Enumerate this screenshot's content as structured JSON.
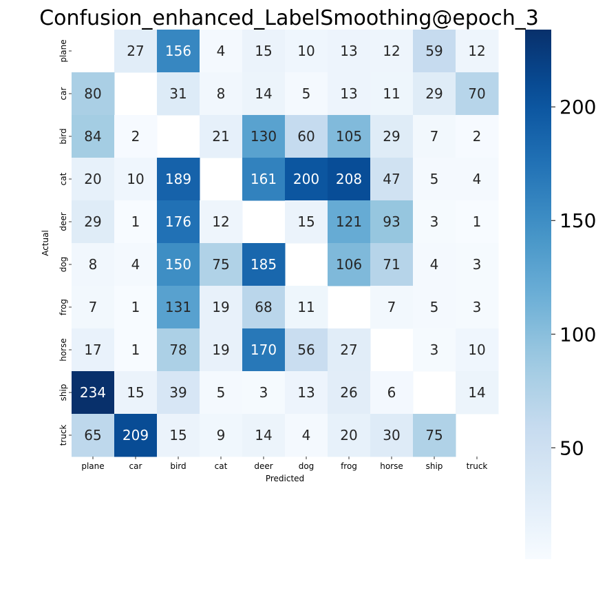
{
  "chart_data": {
    "type": "heatmap",
    "title": "Confusion_enhanced_LabelSmoothing@epoch_3",
    "xlabel": "Predicted",
    "ylabel": "Actual",
    "x_categories": [
      "plane",
      "car",
      "bird",
      "cat",
      "deer",
      "dog",
      "frog",
      "horse",
      "ship",
      "truck"
    ],
    "y_categories": [
      "plane",
      "car",
      "bird",
      "cat",
      "deer",
      "dog",
      "frog",
      "horse",
      "ship",
      "truck"
    ],
    "values": [
      [
        null,
        27,
        156,
        4,
        15,
        10,
        13,
        12,
        59,
        12
      ],
      [
        80,
        null,
        31,
        8,
        14,
        5,
        13,
        11,
        29,
        70
      ],
      [
        84,
        2,
        null,
        21,
        130,
        60,
        105,
        29,
        7,
        2
      ],
      [
        20,
        10,
        189,
        null,
        161,
        200,
        208,
        47,
        5,
        4
      ],
      [
        29,
        1,
        176,
        12,
        null,
        15,
        121,
        93,
        3,
        1
      ],
      [
        8,
        4,
        150,
        75,
        185,
        null,
        106,
        71,
        4,
        3
      ],
      [
        7,
        1,
        131,
        19,
        68,
        11,
        null,
        7,
        5,
        3
      ],
      [
        17,
        1,
        78,
        19,
        170,
        56,
        27,
        null,
        3,
        10
      ],
      [
        234,
        15,
        39,
        5,
        3,
        13,
        26,
        6,
        null,
        14
      ],
      [
        65,
        209,
        15,
        9,
        14,
        4,
        20,
        30,
        75,
        null
      ]
    ],
    "colormap": "Blues",
    "color_range": [
      1,
      234
    ],
    "colorbar": {
      "ticks": [
        50,
        100,
        150,
        200
      ],
      "tick_labels": [
        "50",
        "100",
        "150",
        "200"
      ],
      "position": "right"
    },
    "grid": false,
    "diagonal": "masked"
  }
}
